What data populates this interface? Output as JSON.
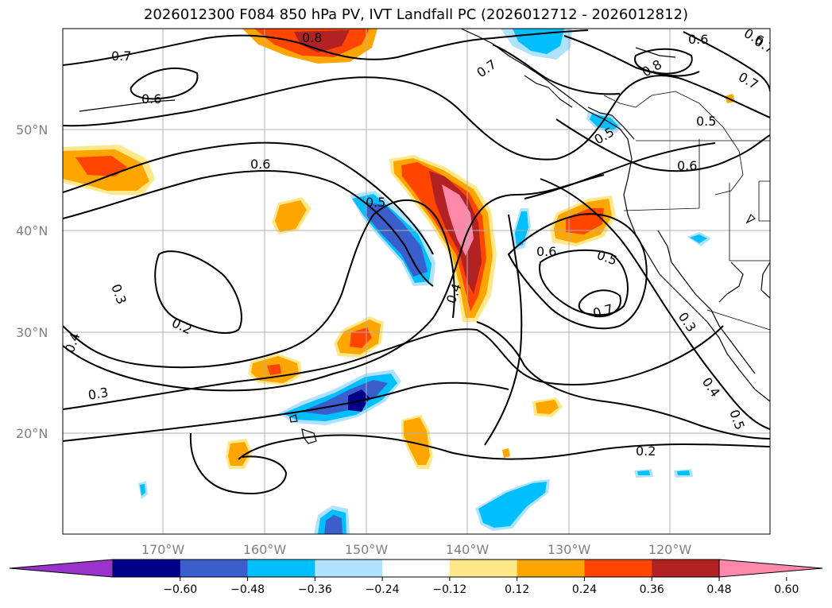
{
  "title": "2026012300 F084 850 hPa PV, IVT Landfall PC (2026012712 - 2026012812)",
  "lat_labels": [
    "50°N",
    "40°N",
    "30°N",
    "20°N"
  ],
  "lon_labels": [
    "170°W",
    "160°W",
    "150°W",
    "140°W",
    "130°W",
    "120°W"
  ],
  "colorbar": {
    "colors": [
      "#9933cc",
      "#00008b",
      "#3a5fcd",
      "#00bfff",
      "#b0e2ff",
      "#ffffff",
      "#ffe88a",
      "#ffa500",
      "#ff4500",
      "#b22222",
      "#ff88aa"
    ],
    "tick_labels": [
      "−0.60",
      "−0.48",
      "−0.36",
      "−0.24",
      "−0.12",
      "0.12",
      "0.24",
      "0.36",
      "0.48",
      "0.60"
    ]
  },
  "contour_labels": [
    "0.7",
    "0.6",
    "0.6",
    "0.5",
    "0.3",
    "0.2",
    "0.4",
    "0.3",
    "0.4",
    "0.6",
    "0.5",
    "0.7",
    "0.2",
    "0.7",
    "0.6",
    "0.8",
    "0.7",
    "0.5",
    "0.6",
    "0.5",
    "0.3",
    "0.4",
    "0.5",
    "0.8",
    "0.6",
    "0.7"
  ]
}
